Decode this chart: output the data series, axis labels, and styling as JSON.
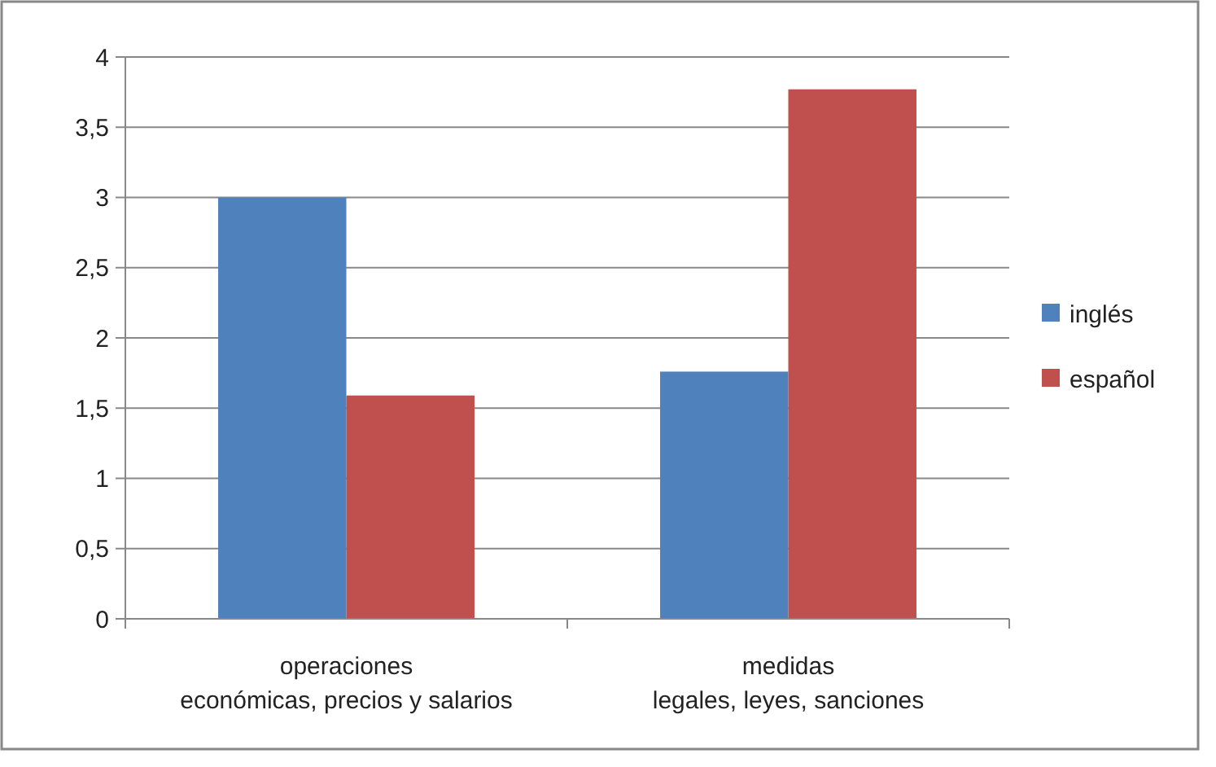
{
  "chart_data": {
    "type": "bar",
    "categories": [
      "operaciones\neconómicas, precios y salarios",
      "medidas\nlegales, leyes, sanciones"
    ],
    "series": [
      {
        "name": "inglés",
        "color": "#4f81bd",
        "values": [
          3.0,
          1.76
        ]
      },
      {
        "name": "español",
        "color": "#c0504d",
        "values": [
          1.59,
          3.77
        ]
      }
    ],
    "ylim": [
      0,
      4
    ],
    "yticks": [
      0,
      {
        "value": 0.5,
        "label": "0,5"
      },
      1,
      {
        "value": 1.5,
        "label": "1,5"
      },
      2,
      {
        "value": 2.5,
        "label": "2,5"
      },
      3,
      {
        "value": 3.5,
        "label": "3,5"
      },
      4
    ],
    "grid": "y",
    "legend": "right"
  }
}
